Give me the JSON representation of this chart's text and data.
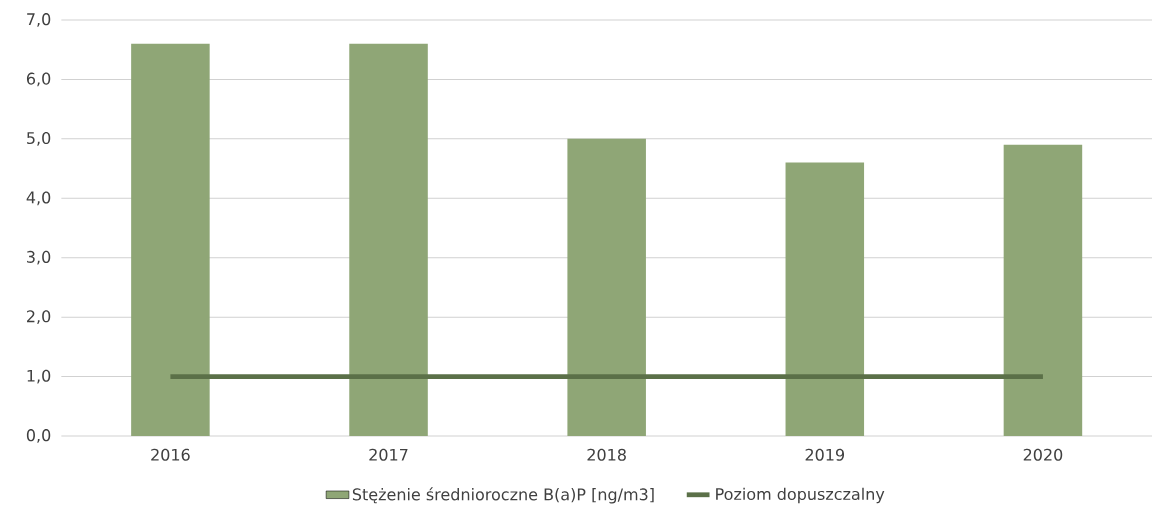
{
  "chart_data": {
    "type": "bar",
    "categories": [
      "2016",
      "2017",
      "2018",
      "2019",
      "2020"
    ],
    "series": [
      {
        "name": "Stężenie średnioroczne B(a)P [ng/m3]",
        "color": "#8fa676",
        "values": [
          6.6,
          6.6,
          5.0,
          4.6,
          4.9
        ]
      },
      {
        "name": "Poziom dopuszczalny",
        "type": "line",
        "color": "#5b7048",
        "values": [
          1.0,
          1.0,
          1.0,
          1.0,
          1.0
        ]
      }
    ],
    "ylim": [
      0,
      7
    ],
    "yticks": [
      {
        "value": 0,
        "label": "0,0"
      },
      {
        "value": 1,
        "label": "1,0"
      },
      {
        "value": 2,
        "label": "2,0"
      },
      {
        "value": 3,
        "label": "3,0"
      },
      {
        "value": 4,
        "label": "4,0"
      },
      {
        "value": 5,
        "label": "5,0"
      },
      {
        "value": 6,
        "label": "6,0"
      },
      {
        "value": 7,
        "label": "7,0"
      }
    ],
    "grid": "y",
    "legend": "bottom",
    "marker": "none"
  }
}
